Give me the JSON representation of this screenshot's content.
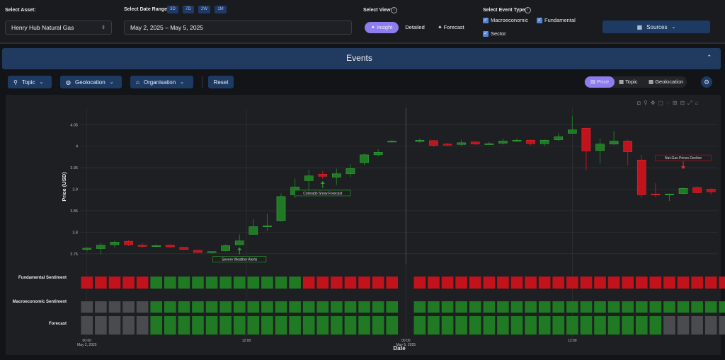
{
  "header": {
    "asset_label": "Select Asset:",
    "asset_value": "Henry Hub Natural Gas",
    "date_label": "Select Date Range:",
    "ranges": [
      "3D",
      "7D",
      "2W",
      "1M"
    ],
    "date_value": "May 2, 2025 – May 5, 2025",
    "view_label": "Select View:",
    "views": [
      "Insight",
      "Detailed",
      "Forecast"
    ],
    "active_view": "Insight",
    "event_label": "Select Event Type:",
    "event_types": [
      "Macroeconomic",
      "Fundamental",
      "Sector"
    ],
    "sources_label": "Sources"
  },
  "events_bar": {
    "title": "Events"
  },
  "filters": {
    "topic": "Topic",
    "geolocation": "Geolocation",
    "organisation": "Organisation",
    "reset": "Reset"
  },
  "toggles": {
    "price": "Price",
    "topic": "Topic",
    "geolocation": "Geolocation"
  },
  "colors": {
    "up": "#1f7a23",
    "down": "#c2121c",
    "neutral": "#4a4b4f",
    "accent": "#8c7cf0",
    "panel": "#1e1f23"
  },
  "chart_data": {
    "type": "candlestick",
    "ylabel": "Price (USD)",
    "xlabel": "Date",
    "ylim": [
      3.725,
      4.09
    ],
    "y_ticks": [
      3.75,
      3.8,
      3.85,
      3.9,
      3.95,
      4,
      4.05
    ],
    "y_tick_labels": [
      "3.75",
      "3.8",
      "3.85",
      "3.9",
      "3.95",
      "4",
      "4.05"
    ],
    "x_tick_labels": [
      {
        "time": "00:00",
        "date": "May 2, 2025"
      },
      {
        "time": "12:00",
        "date": ""
      },
      {
        "time": "00:00",
        "date": "May 5, 2025"
      },
      {
        "time": "12:00",
        "date": ""
      }
    ],
    "candles": [
      {
        "o": 3.76,
        "h": 3.765,
        "l": 3.755,
        "c": 3.763
      },
      {
        "o": 3.762,
        "h": 3.775,
        "l": 3.749,
        "c": 3.77
      },
      {
        "o": 3.771,
        "h": 3.78,
        "l": 3.765,
        "c": 3.777
      },
      {
        "o": 3.779,
        "h": 3.782,
        "l": 3.768,
        "c": 3.771
      },
      {
        "o": 3.77,
        "h": 3.775,
        "l": 3.765,
        "c": 3.767
      },
      {
        "o": 3.767,
        "h": 3.772,
        "l": 3.765,
        "c": 3.769
      },
      {
        "o": 3.77,
        "h": 3.772,
        "l": 3.764,
        "c": 3.766
      },
      {
        "o": 3.765,
        "h": 3.766,
        "l": 3.759,
        "c": 3.76
      },
      {
        "o": 3.758,
        "h": 3.759,
        "l": 3.752,
        "c": 3.753
      },
      {
        "o": 3.753,
        "h": 3.755,
        "l": 3.75,
        "c": 3.755
      },
      {
        "o": 3.757,
        "h": 3.772,
        "l": 3.755,
        "c": 3.769
      },
      {
        "o": 3.771,
        "h": 3.795,
        "l": 3.77,
        "c": 3.78
      },
      {
        "o": 3.795,
        "h": 3.83,
        "l": 3.795,
        "c": 3.813
      },
      {
        "o": 3.813,
        "h": 3.843,
        "l": 3.803,
        "c": 3.815
      },
      {
        "o": 3.827,
        "h": 3.89,
        "l": 3.825,
        "c": 3.883
      },
      {
        "o": 3.887,
        "h": 3.925,
        "l": 3.88,
        "c": 3.905
      },
      {
        "o": 3.92,
        "h": 3.945,
        "l": 3.895,
        "c": 3.931
      },
      {
        "o": 3.935,
        "h": 3.943,
        "l": 3.924,
        "c": 3.93
      },
      {
        "o": 3.928,
        "h": 3.948,
        "l": 3.91,
        "c": 3.936
      },
      {
        "o": 3.936,
        "h": 3.958,
        "l": 3.928,
        "c": 3.948
      },
      {
        "o": 3.962,
        "h": 3.983,
        "l": 3.956,
        "c": 3.98
      },
      {
        "o": 3.98,
        "h": 3.993,
        "l": 3.976,
        "c": 3.986
      },
      {
        "o": 4.01,
        "h": 4.015,
        "l": 4.008,
        "c": 4.012
      },
      {
        "o": 4.011,
        "h": 4.018,
        "l": 4.008,
        "c": 4.014
      },
      {
        "o": 4.013,
        "h": 4.014,
        "l": 3.999,
        "c": 4.002
      },
      {
        "o": 4.005,
        "h": 4.008,
        "l": 4.0,
        "c": 4.004
      },
      {
        "o": 4.004,
        "h": 4.015,
        "l": 4.0,
        "c": 4.008
      },
      {
        "o": 4.01,
        "h": 4.011,
        "l": 4.003,
        "c": 4.005
      },
      {
        "o": 4.004,
        "h": 4.01,
        "l": 4.003,
        "c": 4.006
      },
      {
        "o": 4.007,
        "h": 4.018,
        "l": 4.004,
        "c": 4.012
      },
      {
        "o": 4.012,
        "h": 4.018,
        "l": 4.01,
        "c": 4.014
      },
      {
        "o": 4.014,
        "h": 4.016,
        "l": 4.002,
        "c": 4.006
      },
      {
        "o": 4.006,
        "h": 4.016,
        "l": 4.0,
        "c": 4.014
      },
      {
        "o": 4.015,
        "h": 4.03,
        "l": 4.012,
        "c": 4.022
      },
      {
        "o": 4.03,
        "h": 4.07,
        "l": 4.029,
        "c": 4.038
      },
      {
        "o": 4.042,
        "h": 4.043,
        "l": 3.945,
        "c": 3.989
      },
      {
        "o": 3.99,
        "h": 4.018,
        "l": 3.96,
        "c": 4.005
      },
      {
        "o": 4.005,
        "h": 4.035,
        "l": 4.003,
        "c": 4.012
      },
      {
        "o": 4.012,
        "h": 4.015,
        "l": 3.955,
        "c": 3.987
      },
      {
        "o": 3.968,
        "h": 3.98,
        "l": 3.88,
        "c": 3.887
      },
      {
        "o": 3.889,
        "h": 3.914,
        "l": 3.881,
        "c": 3.887
      },
      {
        "o": 3.888,
        "h": 3.89,
        "l": 3.873,
        "c": 3.889
      },
      {
        "o": 3.89,
        "h": 3.904,
        "l": 3.888,
        "c": 3.902
      },
      {
        "o": 3.904,
        "h": 3.907,
        "l": 3.891,
        "c": 3.892
      },
      {
        "o": 3.9,
        "h": 3.902,
        "l": 3.887,
        "c": 3.894
      }
    ],
    "annotations": [
      {
        "label": "Severe Weather Alerts",
        "candle": 11,
        "dir": "up"
      },
      {
        "label": "Colorado Snow Forecast",
        "candle": 17,
        "dir": "up"
      },
      {
        "label": "Nat-Gas Prices Decline",
        "candle": 42,
        "dir": "down"
      }
    ],
    "sentiment_rows": [
      {
        "label": "Fundamental Sentiment",
        "cells": "RRRRRGGGGGGGGGGGRRRRRRR_RRRRRRRRRRRRRRRRRRRRRRR"
      },
      {
        "label": "Macroeconomic Sentiment",
        "cells": "NNNNNGGGGGGGGGGGGGGGGGG_GGGGGGGGGGGGGGGGGGGGGGG"
      },
      {
        "label": "Forecast",
        "cells": "NNNNNGGGGGGGGGGGGGGGGGG_GGGGGGGGGGGGGGGGGGNNNNN"
      }
    ]
  }
}
